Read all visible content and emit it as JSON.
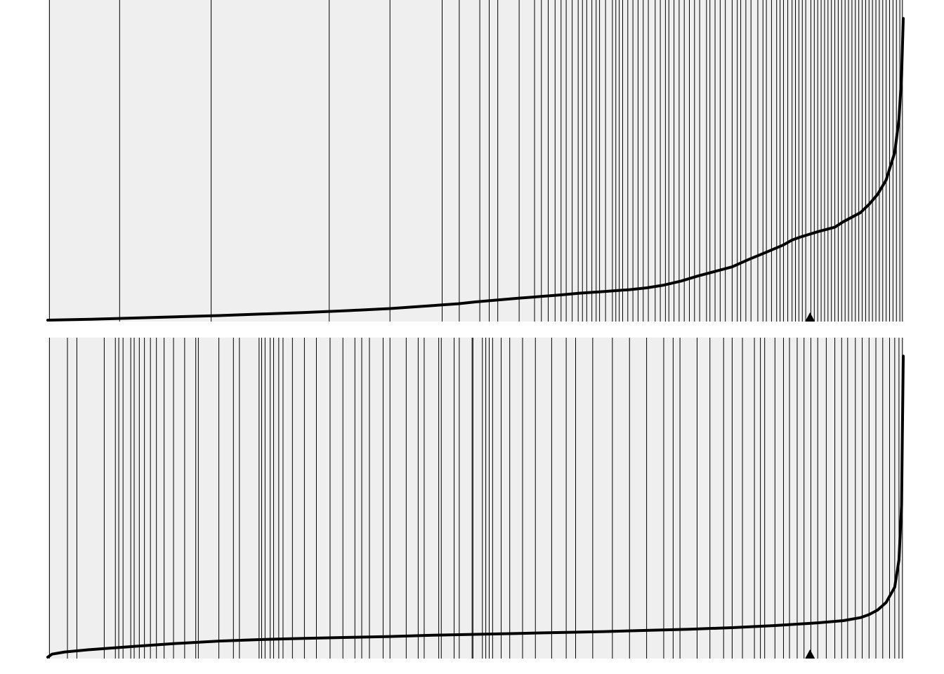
{
  "chart_data": [
    {
      "type": "line",
      "title": "",
      "xlabel": "",
      "ylabel": "",
      "background": "#efefef",
      "line_color": "#000000",
      "rug_color": "#000000",
      "marker": "triangle-up",
      "marker_color": "#000000",
      "marker_at": 0.891,
      "xlim": [
        0,
        1
      ],
      "ylim": [
        0,
        1
      ],
      "curve": [
        [
          0.0,
          0.0
        ],
        [
          0.05,
          0.003
        ],
        [
          0.1,
          0.007
        ],
        [
          0.15,
          0.011
        ],
        [
          0.2,
          0.015
        ],
        [
          0.25,
          0.02
        ],
        [
          0.3,
          0.025
        ],
        [
          0.35,
          0.031
        ],
        [
          0.4,
          0.038
        ],
        [
          0.45,
          0.048
        ],
        [
          0.48,
          0.054
        ],
        [
          0.5,
          0.06
        ],
        [
          0.55,
          0.072
        ],
        [
          0.6,
          0.083
        ],
        [
          0.62,
          0.088
        ],
        [
          0.65,
          0.094
        ],
        [
          0.68,
          0.1
        ],
        [
          0.7,
          0.106
        ],
        [
          0.72,
          0.115
        ],
        [
          0.74,
          0.128
        ],
        [
          0.76,
          0.145
        ],
        [
          0.78,
          0.16
        ],
        [
          0.8,
          0.175
        ],
        [
          0.82,
          0.2
        ],
        [
          0.84,
          0.223
        ],
        [
          0.86,
          0.247
        ],
        [
          0.87,
          0.263
        ],
        [
          0.88,
          0.273
        ],
        [
          0.9,
          0.29
        ],
        [
          0.92,
          0.305
        ],
        [
          0.93,
          0.323
        ],
        [
          0.95,
          0.353
        ],
        [
          0.96,
          0.38
        ],
        [
          0.97,
          0.413
        ],
        [
          0.98,
          0.46
        ],
        [
          0.99,
          0.55
        ],
        [
          0.995,
          0.66
        ],
        [
          0.998,
          0.8
        ],
        [
          1.0,
          0.99
        ]
      ],
      "rug": [
        0.002,
        0.084,
        0.191,
        0.329,
        0.4,
        0.461,
        0.481,
        0.505,
        0.516,
        0.526,
        0.551,
        0.569,
        0.577,
        0.585,
        0.593,
        0.6,
        0.606,
        0.613,
        0.62,
        0.625,
        0.63,
        0.636,
        0.641,
        0.645,
        0.652,
        0.66,
        0.664,
        0.668,
        0.672,
        0.678,
        0.684,
        0.69,
        0.696,
        0.702,
        0.71,
        0.716,
        0.722,
        0.726,
        0.732,
        0.738,
        0.744,
        0.75,
        0.756,
        0.762,
        0.77,
        0.774,
        0.78,
        0.786,
        0.792,
        0.8,
        0.806,
        0.81,
        0.816,
        0.822,
        0.83,
        0.836,
        0.84,
        0.846,
        0.852,
        0.856,
        0.86,
        0.865,
        0.87,
        0.874,
        0.878,
        0.882,
        0.886,
        0.892,
        0.896,
        0.9,
        0.904,
        0.908,
        0.912,
        0.916,
        0.92,
        0.924,
        0.928,
        0.932,
        0.936,
        0.94,
        0.944,
        0.948,
        0.952,
        0.956,
        0.96,
        0.964,
        0.968,
        0.972,
        0.976,
        0.98,
        0.984,
        0.988,
        0.992,
        0.996,
        0.999
      ]
    },
    {
      "type": "line",
      "title": "",
      "xlabel": "",
      "ylabel": "",
      "background": "#efefef",
      "line_color": "#000000",
      "rug_color": "#000000",
      "marker": "triangle-up",
      "marker_color": "#000000",
      "marker_at": 0.891,
      "xlim": [
        0,
        1
      ],
      "ylim": [
        0,
        1
      ],
      "curve": [
        [
          0.0,
          0.0
        ],
        [
          0.005,
          0.01
        ],
        [
          0.02,
          0.017
        ],
        [
          0.05,
          0.025
        ],
        [
          0.1,
          0.035
        ],
        [
          0.15,
          0.045
        ],
        [
          0.2,
          0.053
        ],
        [
          0.25,
          0.058
        ],
        [
          0.3,
          0.062
        ],
        [
          0.35,
          0.065
        ],
        [
          0.4,
          0.068
        ],
        [
          0.45,
          0.072
        ],
        [
          0.5,
          0.075
        ],
        [
          0.55,
          0.078
        ],
        [
          0.6,
          0.081
        ],
        [
          0.65,
          0.084
        ],
        [
          0.7,
          0.088
        ],
        [
          0.75,
          0.092
        ],
        [
          0.8,
          0.097
        ],
        [
          0.85,
          0.104
        ],
        [
          0.9,
          0.113
        ],
        [
          0.93,
          0.12
        ],
        [
          0.95,
          0.13
        ],
        [
          0.96,
          0.14
        ],
        [
          0.97,
          0.155
        ],
        [
          0.98,
          0.18
        ],
        [
          0.99,
          0.23
        ],
        [
          0.995,
          0.32
        ],
        [
          0.998,
          0.5
        ],
        [
          1.0,
          0.99
        ]
      ],
      "rug": [
        0.002,
        0.023,
        0.034,
        0.066,
        0.079,
        0.083,
        0.088,
        0.097,
        0.101,
        0.107,
        0.113,
        0.12,
        0.127,
        0.136,
        0.147,
        0.16,
        0.173,
        0.176,
        0.2,
        0.217,
        0.224,
        0.247,
        0.25,
        0.254,
        0.26,
        0.264,
        0.27,
        0.275,
        0.286,
        0.3,
        0.314,
        0.33,
        0.345,
        0.359,
        0.367,
        0.376,
        0.392,
        0.4,
        0.419,
        0.433,
        0.44,
        0.457,
        0.46,
        0.475,
        0.481,
        0.496,
        0.497,
        0.508,
        0.512,
        0.516,
        0.52,
        0.53,
        0.54,
        0.555,
        0.57,
        0.589,
        0.606,
        0.617,
        0.637,
        0.66,
        0.68,
        0.7,
        0.72,
        0.731,
        0.739,
        0.759,
        0.774,
        0.79,
        0.8,
        0.812,
        0.826,
        0.833,
        0.838,
        0.85,
        0.86,
        0.867,
        0.876,
        0.884,
        0.892,
        0.9,
        0.91,
        0.92,
        0.928,
        0.935,
        0.944,
        0.952,
        0.96,
        0.968,
        0.976,
        0.984,
        0.99,
        0.995,
        0.999
      ]
    }
  ]
}
